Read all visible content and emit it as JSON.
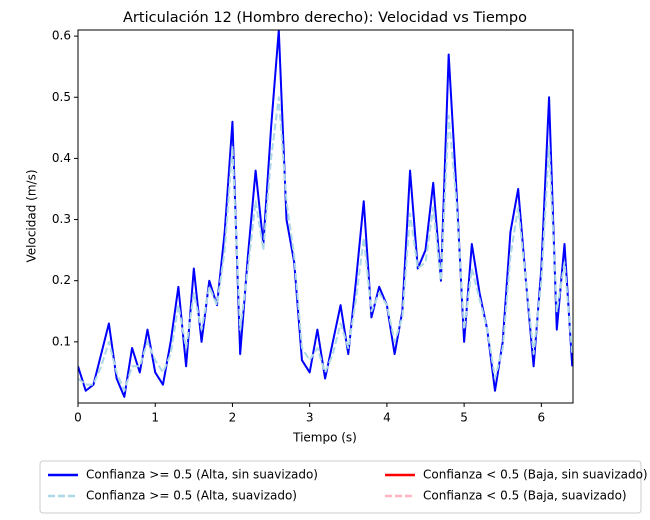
{
  "chart_data": {
    "type": "line",
    "title": "Articulación 12 (Hombro derecho): Velocidad vs Tiempo",
    "xlabel": "Tiempo (s)",
    "ylabel": "Velocidad (m/s)",
    "x": [
      0,
      0.1,
      0.2,
      0.3,
      0.4,
      0.5,
      0.6,
      0.7,
      0.8,
      0.9,
      1.0,
      1.1,
      1.2,
      1.3,
      1.4,
      1.5,
      1.6,
      1.7,
      1.8,
      1.9,
      2.0,
      2.1,
      2.2,
      2.3,
      2.4,
      2.5,
      2.6,
      2.7,
      2.8,
      2.9,
      3.0,
      3.1,
      3.2,
      3.3,
      3.4,
      3.5,
      3.6,
      3.7,
      3.8,
      3.9,
      4.0,
      4.1,
      4.2,
      4.3,
      4.4,
      4.5,
      4.6,
      4.7,
      4.8,
      4.9,
      5.0,
      5.1,
      5.2,
      5.3,
      5.4,
      5.5,
      5.6,
      5.7,
      5.8,
      5.9,
      6.0,
      6.1,
      6.2,
      6.3,
      6.4
    ],
    "series": [
      {
        "name": "Confianza >= 0.5 (Alta, sin suavizado)",
        "color": "#0000ff",
        "linestyle": "solid",
        "values": [
          0.06,
          0.02,
          0.03,
          0.08,
          0.13,
          0.04,
          0.01,
          0.09,
          0.05,
          0.12,
          0.05,
          0.03,
          0.1,
          0.19,
          0.06,
          0.22,
          0.1,
          0.2,
          0.16,
          0.28,
          0.46,
          0.08,
          0.24,
          0.38,
          0.26,
          0.45,
          0.61,
          0.3,
          0.23,
          0.07,
          0.05,
          0.12,
          0.04,
          0.1,
          0.16,
          0.08,
          0.2,
          0.33,
          0.14,
          0.19,
          0.16,
          0.08,
          0.15,
          0.38,
          0.22,
          0.25,
          0.36,
          0.2,
          0.57,
          0.35,
          0.1,
          0.26,
          0.18,
          0.12,
          0.02,
          0.1,
          0.28,
          0.35,
          0.2,
          0.06,
          0.22,
          0.5,
          0.12,
          0.26,
          0.06
        ]
      },
      {
        "name": "Confianza < 0.5 (Baja, sin suavizado)",
        "color": "#ff0000",
        "linestyle": "solid",
        "values": [
          null,
          null,
          null,
          null,
          null,
          null,
          null,
          null,
          null,
          null,
          null,
          null,
          null,
          null,
          null,
          null,
          null,
          null,
          null,
          null,
          null,
          null,
          null,
          null,
          null,
          null,
          null,
          null,
          null,
          null,
          null,
          null,
          null,
          null,
          null,
          null,
          null,
          null,
          null,
          null,
          null,
          null,
          null,
          null,
          null,
          null,
          null,
          null,
          null,
          null,
          null,
          null,
          null,
          null,
          null,
          null,
          null,
          null,
          null,
          null,
          null,
          null,
          null,
          null,
          null
        ]
      },
      {
        "name": "Confianza >= 0.5 (Alta, suavizado)",
        "color": "#add8e6",
        "linestyle": "dashed",
        "values": [
          0.04,
          0.03,
          0.03,
          0.06,
          0.1,
          0.05,
          0.02,
          0.06,
          0.06,
          0.1,
          0.07,
          0.05,
          0.08,
          0.16,
          0.09,
          0.18,
          0.12,
          0.19,
          0.16,
          0.25,
          0.42,
          0.12,
          0.22,
          0.33,
          0.25,
          0.4,
          0.5,
          0.33,
          0.24,
          0.09,
          0.07,
          0.09,
          0.05,
          0.08,
          0.13,
          0.09,
          0.17,
          0.27,
          0.15,
          0.18,
          0.16,
          0.1,
          0.14,
          0.31,
          0.22,
          0.23,
          0.32,
          0.2,
          0.47,
          0.33,
          0.12,
          0.22,
          0.17,
          0.12,
          0.04,
          0.09,
          0.24,
          0.32,
          0.2,
          0.08,
          0.2,
          0.42,
          0.15,
          0.23,
          0.08
        ]
      },
      {
        "name": "Confianza < 0.5 (Baja, suavizado)",
        "color": "#ffb6c1",
        "linestyle": "dashed",
        "values": [
          null,
          null,
          null,
          null,
          null,
          null,
          null,
          null,
          null,
          null,
          null,
          null,
          null,
          null,
          null,
          null,
          null,
          null,
          null,
          null,
          null,
          null,
          null,
          null,
          null,
          null,
          null,
          null,
          null,
          null,
          null,
          null,
          null,
          null,
          null,
          null,
          null,
          null,
          null,
          null,
          null,
          null,
          null,
          null,
          null,
          null,
          null,
          null,
          null,
          null,
          null,
          null,
          null,
          null,
          null,
          null,
          null,
          null,
          null,
          null,
          null,
          null,
          null,
          null,
          null
        ]
      }
    ],
    "xlim": [
      0,
      6.41
    ],
    "xticks": [
      0,
      1,
      2,
      3,
      4,
      5,
      6
    ],
    "ylim": [
      0,
      0.61
    ],
    "yticks": [
      0.1,
      0.2,
      0.3,
      0.4,
      0.5,
      0.6
    ],
    "legend": "lower center",
    "legend_columns": 2
  }
}
